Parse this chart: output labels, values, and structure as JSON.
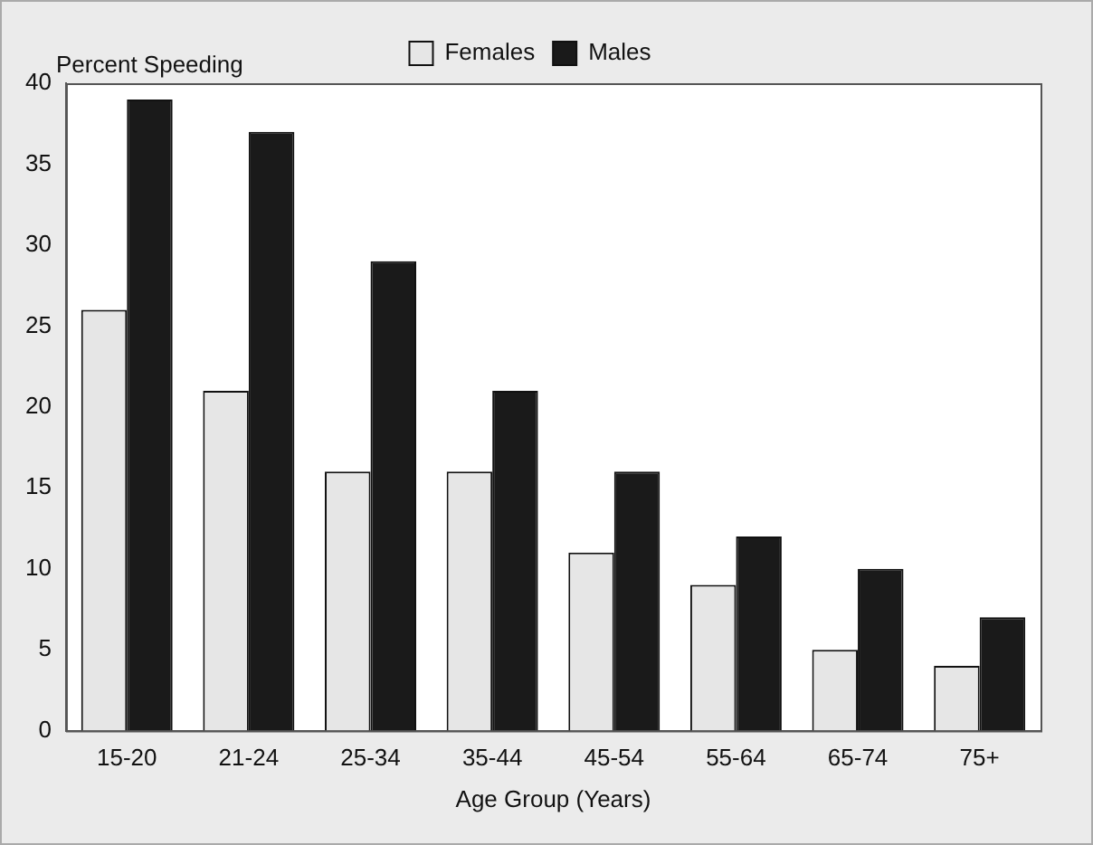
{
  "chart_data": {
    "type": "bar",
    "ylabel": "Percent Speeding",
    "xlabel": "Age Group (Years)",
    "categories": [
      "15-20",
      "21-24",
      "25-34",
      "35-44",
      "45-54",
      "55-64",
      "65-74",
      "75+"
    ],
    "series": [
      {
        "name": "Females",
        "color": "#e6e6e6",
        "values": [
          26,
          21,
          16,
          16,
          11,
          9,
          5,
          4
        ]
      },
      {
        "name": "Males",
        "color": "#1a1a1a",
        "values": [
          39,
          37,
          29,
          21,
          16,
          12,
          10,
          7
        ]
      }
    ],
    "ylim": [
      0,
      40
    ],
    "yticks": [
      0,
      5,
      10,
      15,
      20,
      25,
      30,
      35,
      40
    ],
    "grid": false,
    "legend": "top"
  }
}
